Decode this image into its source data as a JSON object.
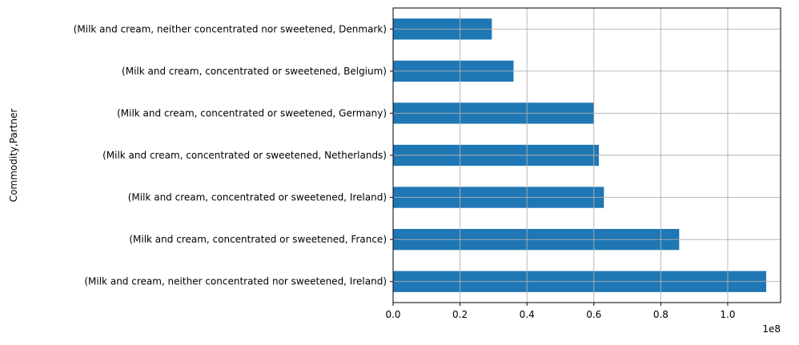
{
  "chart_data": {
    "type": "bar",
    "orientation": "horizontal",
    "categories": [
      "(Milk and cream, neither concentrated nor sweetened, Ireland)",
      "(Milk and cream, concentrated or sweetened, France)",
      "(Milk and cream, concentrated or sweetened, Ireland)",
      "(Milk and cream, concentrated or sweetened, Netherlands)",
      "(Milk and cream, concentrated or sweetened, Germany)",
      "(Milk and cream, concentrated or sweetened, Belgium)",
      "(Milk and cream, neither concentrated nor sweetened, Denmark)"
    ],
    "values": [
      111500000,
      85500000,
      63000000,
      61500000,
      60000000,
      36000000,
      29500000
    ],
    "title": "",
    "xlabel": "",
    "ylabel": "Commodity,Partner",
    "xlim": [
      0,
      115800000
    ],
    "x_ticks": [
      0,
      20000000,
      40000000,
      60000000,
      80000000,
      100000000
    ],
    "x_tick_labels": [
      "0.0",
      "0.2",
      "0.4",
      "0.6",
      "0.8",
      "1.0"
    ],
    "x_offset_label": "1e8",
    "grid": true,
    "legend": "none",
    "bar_color": "#1f77b4",
    "grid_color": "#b0b0b0"
  }
}
